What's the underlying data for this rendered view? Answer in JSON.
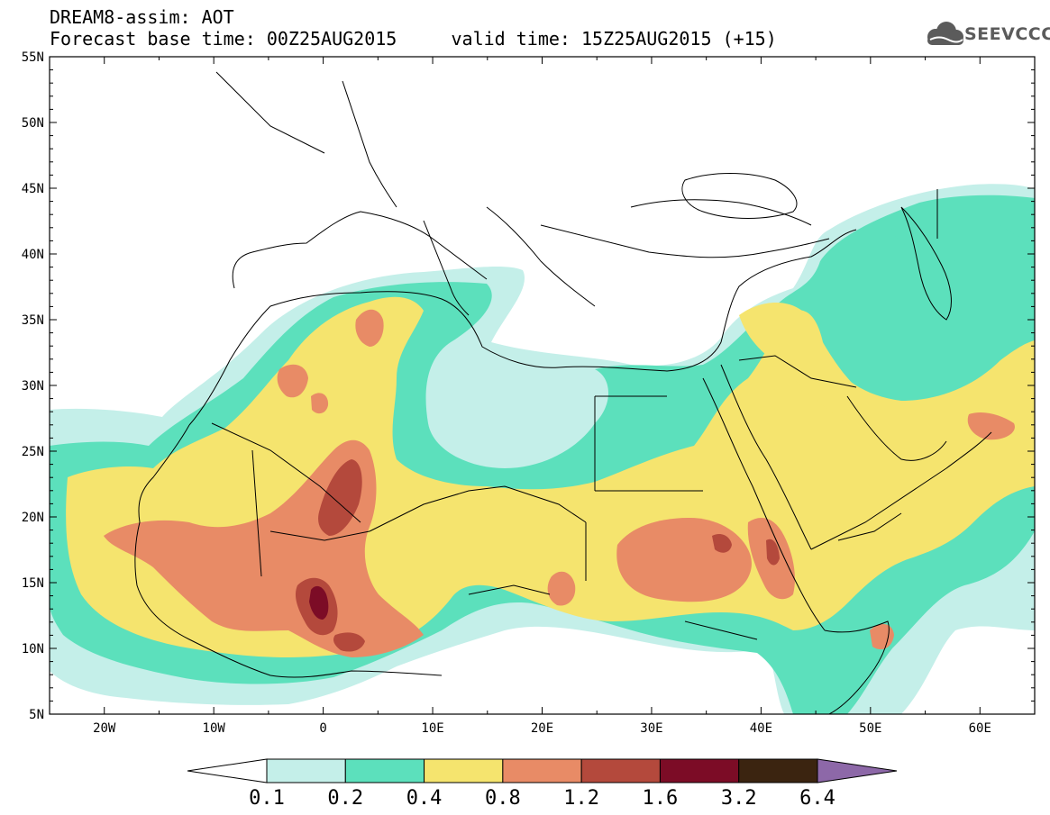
{
  "header": {
    "line1": "DREAM8-assim: AOT",
    "line2": "Forecast base time: 00Z25AUG2015     valid time: 15Z25AUG2015 (+15)"
  },
  "logo": {
    "text": "SEEVCCC",
    "icon": "cloud-icon"
  },
  "map": {
    "lon_range": [
      -25,
      65
    ],
    "lat_range": [
      5,
      55
    ],
    "lon_ticks": [
      {
        "value": -20,
        "label": "20W"
      },
      {
        "value": -10,
        "label": "10W"
      },
      {
        "value": 0,
        "label": "0"
      },
      {
        "value": 10,
        "label": "10E"
      },
      {
        "value": 20,
        "label": "20E"
      },
      {
        "value": 30,
        "label": "30E"
      },
      {
        "value": 40,
        "label": "40E"
      },
      {
        "value": 50,
        "label": "50E"
      },
      {
        "value": 60,
        "label": "60E"
      }
    ],
    "lat_ticks": [
      {
        "value": 55,
        "label": "55N"
      },
      {
        "value": 50,
        "label": "50N"
      },
      {
        "value": 45,
        "label": "45N"
      },
      {
        "value": 40,
        "label": "40N"
      },
      {
        "value": 35,
        "label": "35N"
      },
      {
        "value": 30,
        "label": "30N"
      },
      {
        "value": 25,
        "label": "25N"
      },
      {
        "value": 20,
        "label": "20N"
      },
      {
        "value": 15,
        "label": "15N"
      },
      {
        "value": 10,
        "label": "10N"
      },
      {
        "value": 5,
        "label": "5N"
      }
    ]
  },
  "colorbar": {
    "levels": [
      "0.1",
      "0.2",
      "0.4",
      "0.8",
      "1.2",
      "1.6",
      "3.2",
      "6.4"
    ],
    "colors": [
      "#ffffff",
      "#c4efe9",
      "#5ce0bc",
      "#f5e46e",
      "#e88b66",
      "#b4493c",
      "#7c0c26",
      "#3b2410",
      "#8d68a8"
    ]
  }
}
